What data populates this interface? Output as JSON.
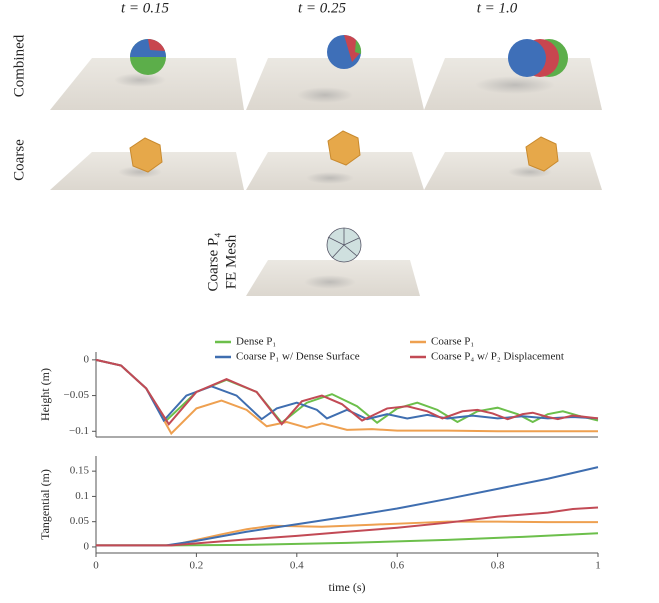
{
  "figure": {
    "columns": [
      "t = 0.15",
      "t = 0.25",
      "t = 1.0"
    ],
    "rows": [
      [
        "Combined"
      ],
      [
        "Coarse"
      ],
      [
        "Coarse P₄",
        "FE Mesh"
      ]
    ]
  },
  "chart_data": [
    {
      "type": "line",
      "ylabel": "Height (m)",
      "xlim": [
        0,
        1
      ],
      "ylim": [
        -0.108,
        0.011
      ],
      "yticks": [
        0,
        {
          "value": -0.05,
          "label": "−0.05"
        },
        {
          "value": -0.1,
          "label": "−0.1"
        }
      ],
      "series": [
        {
          "name": "Dense P₁",
          "color": "#6cbf4b",
          "x": [
            0,
            0.05,
            0.1,
            0.14,
            0.2,
            0.26,
            0.32,
            0.37,
            0.42,
            0.47,
            0.52,
            0.56,
            0.6,
            0.64,
            0.68,
            0.72,
            0.76,
            0.8,
            0.84,
            0.87,
            0.9,
            0.93,
            0.96,
            1
          ],
          "values": [
            0,
            -0.008,
            -0.04,
            -0.085,
            -0.045,
            -0.028,
            -0.045,
            -0.088,
            -0.06,
            -0.048,
            -0.065,
            -0.088,
            -0.068,
            -0.06,
            -0.07,
            -0.087,
            -0.072,
            -0.067,
            -0.076,
            -0.087,
            -0.076,
            -0.072,
            -0.078,
            -0.085
          ]
        },
        {
          "name": "Coarse P₁",
          "color": "#eea050",
          "x": [
            0,
            0.05,
            0.1,
            0.15,
            0.2,
            0.25,
            0.3,
            0.34,
            0.38,
            0.42,
            0.45,
            0.5,
            0.55,
            0.6,
            0.7,
            0.8,
            0.9,
            1
          ],
          "values": [
            0,
            -0.008,
            -0.04,
            -0.103,
            -0.068,
            -0.057,
            -0.07,
            -0.093,
            -0.087,
            -0.095,
            -0.089,
            -0.098,
            -0.097,
            -0.099,
            -0.099,
            -0.1,
            -0.1,
            -0.1
          ]
        },
        {
          "name": "Coarse P₁ w/ Dense Surface",
          "color": "#3f6eb0",
          "x": [
            0,
            0.05,
            0.1,
            0.135,
            0.18,
            0.23,
            0.28,
            0.33,
            0.36,
            0.4,
            0.44,
            0.46,
            0.5,
            0.54,
            0.58,
            0.62,
            0.66,
            0.7,
            0.75,
            0.8,
            0.85,
            0.9,
            0.95,
            1
          ],
          "values": [
            0,
            -0.008,
            -0.04,
            -0.085,
            -0.05,
            -0.037,
            -0.05,
            -0.083,
            -0.068,
            -0.06,
            -0.07,
            -0.082,
            -0.07,
            -0.083,
            -0.076,
            -0.082,
            -0.077,
            -0.082,
            -0.078,
            -0.082,
            -0.079,
            -0.082,
            -0.08,
            -0.082
          ]
        },
        {
          "name": "Coarse P₄ w/ P₂ Displacement",
          "color": "#c24a55",
          "x": [
            0,
            0.05,
            0.1,
            0.145,
            0.2,
            0.26,
            0.32,
            0.37,
            0.41,
            0.45,
            0.49,
            0.53,
            0.58,
            0.62,
            0.66,
            0.69,
            0.73,
            0.76,
            0.79,
            0.82,
            0.85,
            0.87,
            0.9,
            0.92,
            0.95,
            1
          ],
          "values": [
            0,
            -0.008,
            -0.04,
            -0.09,
            -0.045,
            -0.027,
            -0.045,
            -0.09,
            -0.058,
            -0.05,
            -0.062,
            -0.085,
            -0.068,
            -0.065,
            -0.072,
            -0.082,
            -0.072,
            -0.07,
            -0.075,
            -0.083,
            -0.076,
            -0.074,
            -0.08,
            -0.083,
            -0.078,
            -0.082
          ]
        }
      ]
    },
    {
      "type": "line",
      "ylabel": "Tangential (m)",
      "xlabel": "time (s)",
      "xlim": [
        0,
        1
      ],
      "ylim": [
        -0.012,
        0.18
      ],
      "xticks": [
        0,
        0.2,
        0.4,
        0.6,
        0.8,
        1
      ],
      "yticks": [
        0,
        0.05,
        0.1,
        0.15
      ],
      "series": [
        {
          "color": "#6cbf4b",
          "x": [
            0,
            0.15,
            0.3,
            0.5,
            0.7,
            0.85,
            1
          ],
          "values": [
            0.003,
            0.003,
            0.004,
            0.008,
            0.014,
            0.02,
            0.027
          ]
        },
        {
          "color": "#eea050",
          "x": [
            0,
            0.15,
            0.25,
            0.3,
            0.35,
            0.45,
            0.55,
            0.65,
            0.7,
            0.8,
            0.9,
            1
          ],
          "values": [
            0.003,
            0.003,
            0.025,
            0.035,
            0.042,
            0.04,
            0.044,
            0.048,
            0.05,
            0.05,
            0.049,
            0.049
          ]
        },
        {
          "color": "#3f6eb0",
          "x": [
            0,
            0.14,
            0.2,
            0.3,
            0.4,
            0.5,
            0.6,
            0.7,
            0.8,
            0.9,
            1
          ],
          "values": [
            0.003,
            0.003,
            0.012,
            0.03,
            0.045,
            0.06,
            0.076,
            0.095,
            0.115,
            0.135,
            0.158
          ]
        },
        {
          "color": "#c24a55",
          "x": [
            0,
            0.15,
            0.3,
            0.4,
            0.5,
            0.6,
            0.7,
            0.8,
            0.9,
            0.95,
            1
          ],
          "values": [
            0.003,
            0.003,
            0.015,
            0.022,
            0.03,
            0.038,
            0.048,
            0.06,
            0.068,
            0.075,
            0.078
          ]
        }
      ]
    }
  ]
}
